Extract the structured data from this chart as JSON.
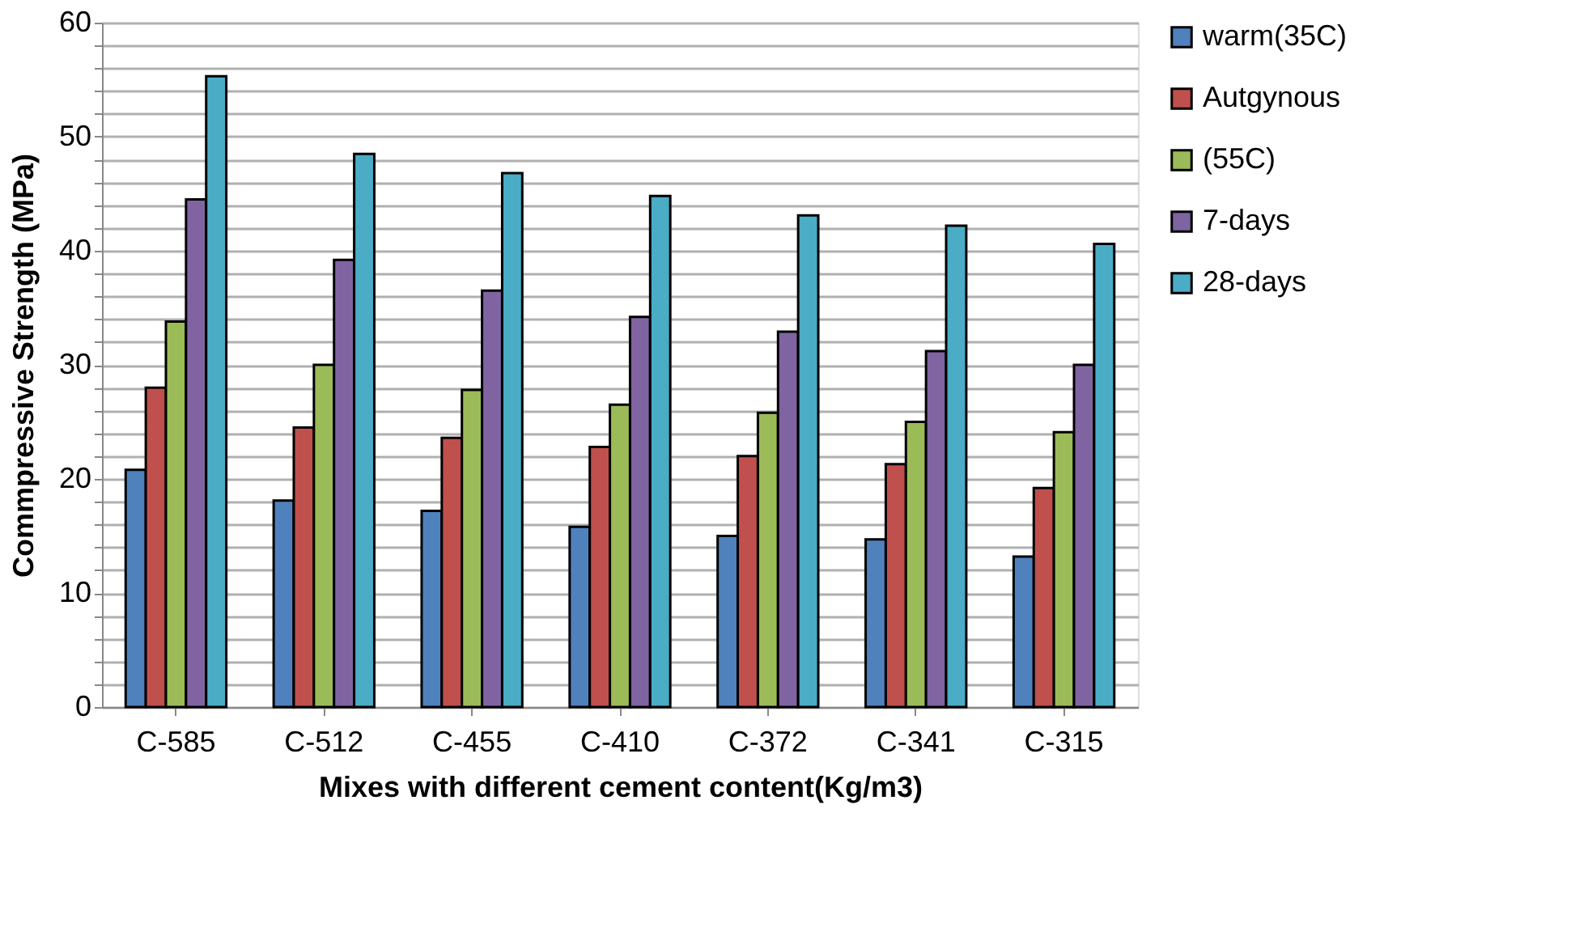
{
  "chart_data": {
    "type": "bar",
    "xlabel": "Mixes with different cement content(Kg/m3)",
    "ylabel": "Commpressive Strength (MPa)",
    "categories": [
      "C-585",
      "C-512",
      "C-455",
      "C-410",
      "C-372",
      "C-341",
      "C-315"
    ],
    "series": [
      {
        "name": "warm(35C)",
        "color": "#4f81bd",
        "values": [
          20.8,
          18.1,
          17.2,
          15.8,
          15.0,
          14.7,
          13.2
        ]
      },
      {
        "name": "Autgynous",
        "color": "#c0504d",
        "values": [
          28.0,
          24.5,
          23.6,
          22.8,
          22.0,
          21.3,
          19.2
        ]
      },
      {
        "name": "(55C)",
        "color": "#9bbb59",
        "values": [
          33.8,
          30.0,
          27.8,
          26.5,
          25.8,
          25.0,
          24.1
        ]
      },
      {
        "name": "7-days",
        "color": "#8064a2",
        "values": [
          44.5,
          39.2,
          36.5,
          34.2,
          32.9,
          31.2,
          30.0
        ]
      },
      {
        "name": "28-days",
        "color": "#4bacc6",
        "values": [
          55.3,
          48.5,
          46.8,
          44.8,
          43.1,
          42.2,
          40.6
        ]
      }
    ],
    "ylim": [
      0,
      60
    ],
    "yticks": [
      0,
      {
        "value": 2,
        "label": null
      },
      {
        "value": 4,
        "label": null
      },
      {
        "value": 6,
        "label": null
      },
      {
        "value": 8,
        "label": null
      },
      10,
      {
        "value": 12,
        "label": null
      },
      {
        "value": 14,
        "label": null
      },
      {
        "value": 16,
        "label": null
      },
      {
        "value": 18,
        "label": null
      },
      20,
      {
        "value": 22,
        "label": null
      },
      {
        "value": 24,
        "label": null
      },
      {
        "value": 26,
        "label": null
      },
      {
        "value": 28,
        "label": null
      },
      30,
      {
        "value": 32,
        "label": null
      },
      {
        "value": 34,
        "label": null
      },
      {
        "value": 36,
        "label": null
      },
      {
        "value": 38,
        "label": null
      },
      40,
      {
        "value": 42,
        "label": null
      },
      {
        "value": 44,
        "label": null
      },
      {
        "value": 46,
        "label": null
      },
      {
        "value": 48,
        "label": null
      },
      50,
      {
        "value": 52,
        "label": null
      },
      {
        "value": 54,
        "label": null
      },
      {
        "value": 56,
        "label": null
      },
      {
        "value": 58,
        "label": null
      },
      60
    ],
    "grid": true,
    "legend": "right"
  }
}
